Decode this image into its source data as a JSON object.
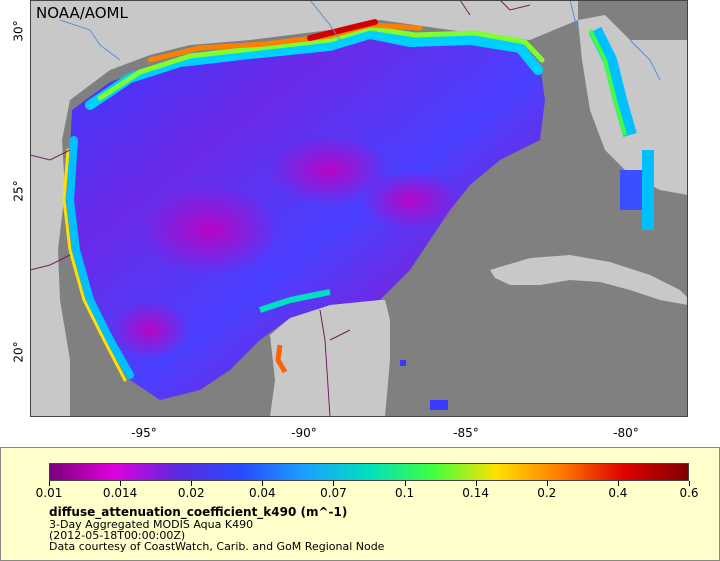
{
  "map": {
    "org_label": "NOAA/AOML",
    "y_ticks": [
      "30°",
      "25°",
      "20°"
    ],
    "x_ticks": [
      "-95°",
      "-90°",
      "-85°",
      "-80°"
    ],
    "colors": {
      "land": "#c8c8c8",
      "no_data": "#808080",
      "border": "#7a1f5c",
      "river": "#5b8fd6"
    }
  },
  "legend": {
    "colorbar_labels": [
      "0.01",
      "0.014",
      "0.02",
      "0.04",
      "0.07",
      "0.1",
      "0.14",
      "0.2",
      "0.4",
      "0.6"
    ],
    "colorbar_stops": [
      "#7a007a",
      "#e000e0",
      "#5a2ae0",
      "#2a4aff",
      "#1aa0ff",
      "#00e0c0",
      "#40ff40",
      "#ffe000",
      "#ff7a00",
      "#e00000",
      "#800000"
    ],
    "variable": "diffuse_attenuation_coefficient_k490 (m^-1)",
    "line1": "3-Day Aggregated MODIS Aqua K490",
    "line2": "(2012-05-18T00:00:00Z)",
    "line3": "Data courtesy of CoastWatch, Carib. and GoM Regional Node"
  }
}
